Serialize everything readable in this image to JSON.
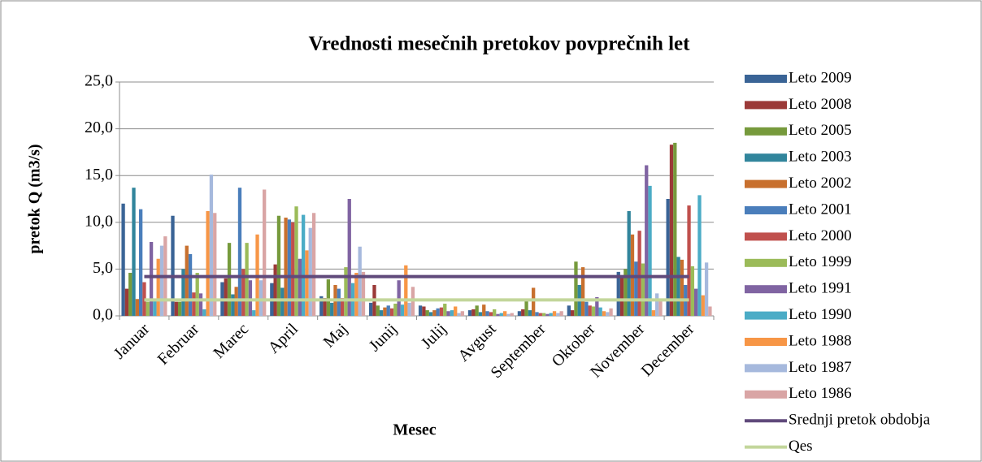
{
  "chart_data": {
    "type": "bar",
    "title": "Vrednosti mesečnih pretokov povprečnih let",
    "x_label": "Mesec",
    "y_label": "pretok Q (m3/s)",
    "categories": [
      "Januar",
      "Februar",
      "Marec",
      "April",
      "Maj",
      "Junij",
      "Julij",
      "Avgust",
      "September",
      "Oktober",
      "November",
      "December"
    ],
    "ylim": [
      0,
      25
    ],
    "yticks": [
      {
        "value": 0,
        "label": "0,0"
      },
      {
        "value": 5,
        "label": "5,0"
      },
      {
        "value": 10,
        "label": "10,0"
      },
      {
        "value": 15,
        "label": "15,0"
      },
      {
        "value": 20,
        "label": "20,0"
      },
      {
        "value": 25,
        "label": "25,0"
      }
    ],
    "grid": true,
    "legend": "right",
    "series": [
      {
        "name": "Leto 2009",
        "color": "#3a6496",
        "type": "bar",
        "values": [
          12.0,
          10.7,
          3.6,
          3.5,
          2.1,
          1.4,
          1.1,
          0.6,
          0.5,
          1.1,
          4.7,
          12.5
        ]
      },
      {
        "name": "Leto 2008",
        "color": "#9b3a38",
        "type": "bar",
        "values": [
          2.9,
          1.5,
          4.0,
          5.5,
          1.9,
          3.3,
          1.0,
          0.7,
          0.7,
          0.6,
          4.1,
          18.3
        ]
      },
      {
        "name": "Leto 2005",
        "color": "#769a3c",
        "type": "bar",
        "values": [
          4.6,
          1.5,
          7.8,
          10.7,
          3.9,
          1.1,
          0.6,
          1.1,
          1.6,
          5.8,
          5.0,
          18.5
        ]
      },
      {
        "name": "Leto 2003",
        "color": "#31859c",
        "type": "bar",
        "values": [
          13.7,
          5.0,
          2.3,
          3.0,
          1.4,
          0.6,
          0.4,
          0.4,
          0.6,
          3.3,
          11.2,
          6.3
        ]
      },
      {
        "name": "Leto 2002",
        "color": "#c8702e",
        "type": "bar",
        "values": [
          1.8,
          7.5,
          3.1,
          10.5,
          3.3,
          0.9,
          0.6,
          1.2,
          3.0,
          5.2,
          8.7,
          6.0
        ]
      },
      {
        "name": "Leto 2001",
        "color": "#4a7ebb",
        "type": "bar",
        "values": [
          11.4,
          6.6,
          13.7,
          10.3,
          2.9,
          1.1,
          0.8,
          0.5,
          0.4,
          1.5,
          5.8,
          3.3
        ]
      },
      {
        "name": "Leto 2000",
        "color": "#c0504d",
        "type": "bar",
        "values": [
          3.6,
          2.5,
          5.0,
          10.0,
          1.9,
          0.8,
          0.9,
          0.4,
          0.3,
          1.1,
          9.1,
          11.8
        ]
      },
      {
        "name": "Leto 1999",
        "color": "#9bbb59",
        "type": "bar",
        "values": [
          1.5,
          4.6,
          7.8,
          11.7,
          5.2,
          1.3,
          1.3,
          0.7,
          0.3,
          1.0,
          5.6,
          5.3
        ]
      },
      {
        "name": "Leto 1991",
        "color": "#8064a2",
        "type": "bar",
        "values": [
          7.9,
          2.4,
          3.8,
          6.1,
          12.5,
          3.8,
          0.5,
          0.2,
          0.2,
          2.0,
          16.1,
          2.9
        ]
      },
      {
        "name": "Leto 1990",
        "color": "#4bacc6",
        "type": "bar",
        "values": [
          1.7,
          0.7,
          0.6,
          10.8,
          3.5,
          1.2,
          0.6,
          0.3,
          0.3,
          0.9,
          13.9,
          12.9
        ]
      },
      {
        "name": "Leto 1988",
        "color": "#f79646",
        "type": "bar",
        "values": [
          6.1,
          11.2,
          8.7,
          7.0,
          4.6,
          5.4,
          1.0,
          0.5,
          0.5,
          0.5,
          0.6,
          2.2
        ]
      },
      {
        "name": "Leto 1987",
        "color": "#a6b9dd",
        "type": "bar",
        "values": [
          7.5,
          15.1,
          3.8,
          9.4,
          7.4,
          1.4,
          0.3,
          0.2,
          0.3,
          0.4,
          2.4,
          5.7
        ]
      },
      {
        "name": "Leto 1986",
        "color": "#d9a5a5",
        "type": "bar",
        "values": [
          8.5,
          11.0,
          13.5,
          11.0,
          4.7,
          3.1,
          0.5,
          0.3,
          0.5,
          0.8,
          1.6,
          1.0
        ]
      },
      {
        "name": "Srednji pretok obdobja",
        "color": "#604a7b",
        "type": "line",
        "values": [
          4.2,
          4.2,
          4.2,
          4.2,
          4.2,
          4.2,
          4.2,
          4.2,
          4.2,
          4.2,
          4.2,
          4.2
        ]
      },
      {
        "name": "Qes",
        "color": "#c3d69b",
        "type": "line",
        "values": [
          1.7,
          1.7,
          1.7,
          1.7,
          1.7,
          1.7,
          1.7,
          1.7,
          1.7,
          1.7,
          1.7,
          1.7
        ]
      }
    ]
  }
}
